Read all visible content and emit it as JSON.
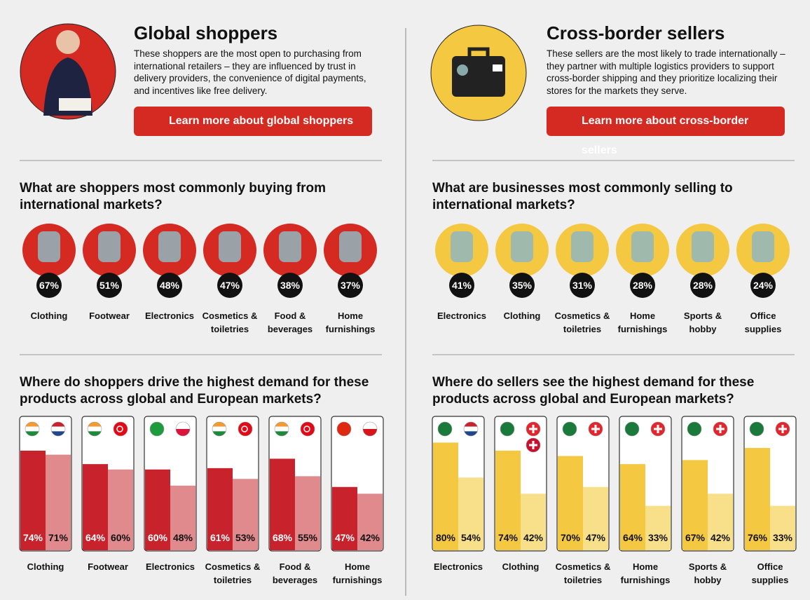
{
  "panels": [
    {
      "title": "Global shoppers",
      "description": "These shoppers are the most open to purchasing from international retailers – they are influenced by trust in delivery providers, the convenience of digital payments, and incentives like free delivery.",
      "button": "Learn more about global shoppers",
      "buying": {
        "heading": "What are shoppers most commonly buying from international markets?",
        "items": [
          {
            "label": "Clothing",
            "share": "67%"
          },
          {
            "label": "Footwear",
            "share": "51%"
          },
          {
            "label": "Electronics",
            "share": "48%"
          },
          {
            "label": "Cosmetics & toiletries",
            "share": "47%"
          },
          {
            "label": "Food & beverages",
            "share": "38%"
          },
          {
            "label": "Home furnishings",
            "share": "37%"
          }
        ]
      },
      "demand": {
        "heading": "Where do shoppers drive the highest demand for these products across global and European markets?",
        "items": [
          {
            "label": "Clothing",
            "values": [
              74,
              71
            ],
            "value_labels": [
              "74%",
              "71%"
            ]
          },
          {
            "label": "Footwear",
            "values": [
              64,
              60
            ],
            "value_labels": [
              "64%",
              "60%"
            ]
          },
          {
            "label": "Electronics",
            "values": [
              60,
              48
            ],
            "value_labels": [
              "60%",
              "48%"
            ]
          },
          {
            "label": "Cosmetics & toiletries",
            "values": [
              61,
              53
            ],
            "value_labels": [
              "61%",
              "53%"
            ]
          },
          {
            "label": "Food & beverages",
            "values": [
              68,
              55
            ],
            "value_labels": [
              "68%",
              "55%"
            ]
          },
          {
            "label": "Home furnishings",
            "values": [
              47,
              42
            ],
            "value_labels": [
              "47%",
              "42%"
            ]
          }
        ]
      }
    },
    {
      "title": "Cross-border sellers",
      "description": "These sellers are the most likely to trade internationally – they partner with multiple logistics providers to support cross-border shipping and they prioritize localizing their stores for the markets they serve.",
      "button": "Learn more about cross-border sellers",
      "buying": {
        "heading": "What are businesses most commonly selling to international markets?",
        "items": [
          {
            "label": "Electronics",
            "share": "41%"
          },
          {
            "label": "Clothing",
            "share": "35%"
          },
          {
            "label": "Cosmetics & toiletries",
            "share": "31%"
          },
          {
            "label": "Home furnishings",
            "share": "28%"
          },
          {
            "label": "Sports & hobby",
            "share": "28%"
          },
          {
            "label": "Office supplies",
            "share": "24%"
          }
        ]
      },
      "demand": {
        "heading": "Where do sellers see the highest demand for these products across global and European markets?",
        "items": [
          {
            "label": "Electronics",
            "values": [
              80,
              54
            ],
            "value_labels": [
              "80%",
              "54%"
            ]
          },
          {
            "label": "Clothing",
            "values": [
              74,
              42
            ],
            "value_labels": [
              "74%",
              "42%"
            ]
          },
          {
            "label": "Cosmetics & toiletries",
            "values": [
              70,
              47
            ],
            "value_labels": [
              "70%",
              "47%"
            ]
          },
          {
            "label": "Home furnishings",
            "values": [
              64,
              33
            ],
            "value_labels": [
              "64%",
              "33%"
            ]
          },
          {
            "label": "Sports & hobby",
            "values": [
              67,
              42
            ],
            "value_labels": [
              "67%",
              "42%"
            ]
          },
          {
            "label": "Office supplies",
            "values": [
              76,
              33
            ],
            "value_labels": [
              "76%",
              "33%"
            ]
          }
        ]
      }
    }
  ]
}
